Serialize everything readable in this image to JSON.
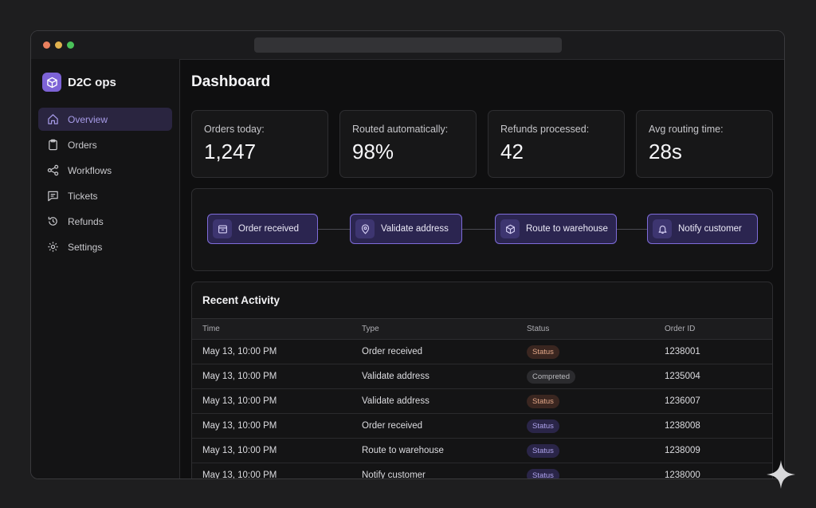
{
  "sidebar": {
    "brand": "D2C ops",
    "items": [
      {
        "label": "Overview",
        "icon": "home-icon",
        "active": true
      },
      {
        "label": "Orders",
        "icon": "clipboard-icon"
      },
      {
        "label": "Workflows",
        "icon": "workflow-icon"
      },
      {
        "label": "Tickets",
        "icon": "message-icon"
      },
      {
        "label": "Refunds",
        "icon": "refund-icon"
      },
      {
        "label": "Settings",
        "icon": "gear-icon"
      }
    ]
  },
  "main": {
    "title": "Dashboard",
    "stats": [
      {
        "label": "Orders today:",
        "value": "1,247"
      },
      {
        "label": "Routed automatically:",
        "value": "98%"
      },
      {
        "label": "Refunds processed:",
        "value": "42"
      },
      {
        "label": "Avg routing time:",
        "value": "28s"
      }
    ],
    "workflow": [
      {
        "label": "Order received",
        "icon": "inbox-icon"
      },
      {
        "label": "Validate address",
        "icon": "map-pin-icon"
      },
      {
        "label": "Route to warehouse",
        "icon": "box-icon"
      },
      {
        "label": "Notify customer",
        "icon": "bell-icon"
      }
    ],
    "activity": {
      "title": "Recent Activity",
      "columns": [
        "Time",
        "Type",
        "Status",
        "Order ID"
      ],
      "rows": [
        {
          "time": "May 13, 10:00 PM",
          "type": "Order received",
          "status": "Status",
          "tone": "orange",
          "order_id": "1238001"
        },
        {
          "time": "May 13, 10:00 PM",
          "type": "Validate address",
          "status": "Compreted",
          "tone": "gray",
          "order_id": "1235004"
        },
        {
          "time": "May 13, 10:00 PM",
          "type": "Validate address",
          "status": "Status",
          "tone": "orange",
          "order_id": "1236007"
        },
        {
          "time": "May 13, 10:00 PM",
          "type": "Order received",
          "status": "Status",
          "tone": "purple",
          "order_id": "1238008"
        },
        {
          "time": "May 13, 10:00 PM",
          "type": "Route to warehouse",
          "status": "Status",
          "tone": "purple",
          "order_id": "1238009"
        },
        {
          "time": "May 13, 10:00 PM",
          "type": "Notify customer",
          "status": "Status",
          "tone": "purple",
          "order_id": "1238000"
        }
      ]
    }
  },
  "colors": {
    "accent": "#7d63d6",
    "badge_orange_bg": "#3a2620",
    "badge_orange_fg": "#e3a788",
    "badge_gray_bg": "#2b2b2e",
    "badge_gray_fg": "#b9b9bd",
    "badge_purple_bg": "#2a2548",
    "badge_purple_fg": "#aea3ec"
  }
}
